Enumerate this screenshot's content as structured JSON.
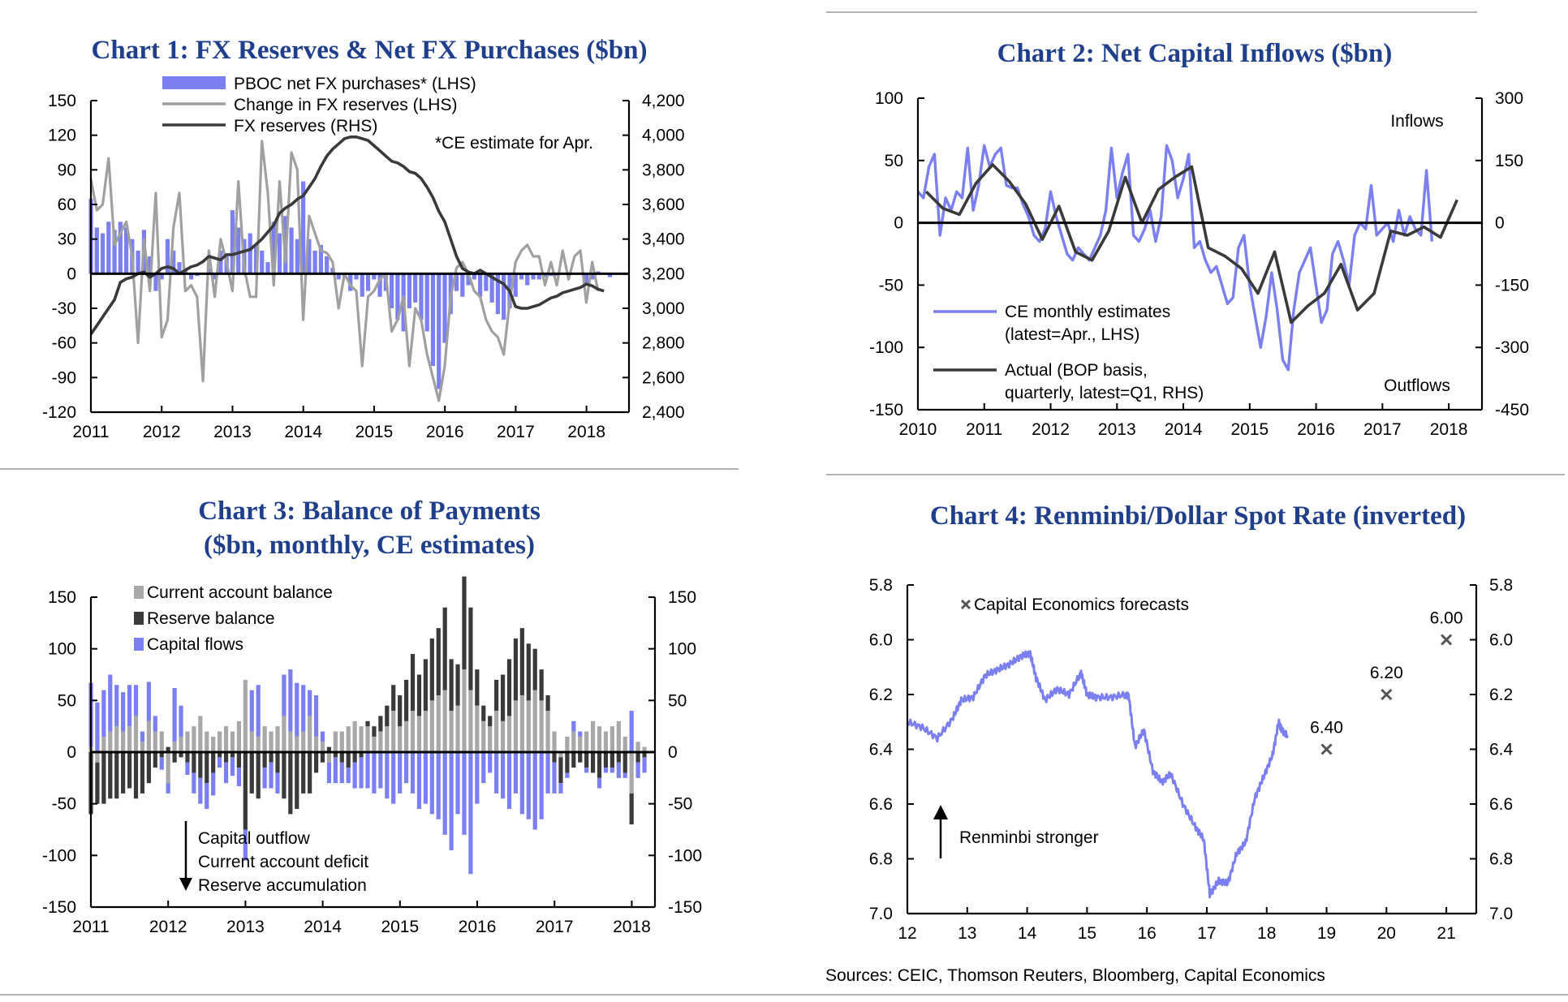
{
  "sources": "Sources: CEIC, Thomson Reuters, Bloomberg, Capital Economics",
  "colors": {
    "title": "#1f3e8c",
    "periwinkle": "#7b7ff2",
    "grey": "#a0a0a0",
    "dark": "#3a3a3a"
  },
  "chart_data": [
    {
      "id": "c1",
      "type": "bar+line",
      "title": "Chart 1: FX Reserves & Net FX Purchases ($bn)",
      "note": "*CE estimate for Apr.",
      "x_ticks": [
        "2011",
        "2012",
        "2013",
        "2014",
        "2015",
        "2016",
        "2017",
        "2018"
      ],
      "x_range": [
        2011,
        2018.6
      ],
      "y_left": {
        "ticks": [
          "150",
          "120",
          "90",
          "60",
          "30",
          "0",
          "-30",
          "-60",
          "-90",
          "-120"
        ],
        "range": [
          -120,
          150
        ]
      },
      "y_right": {
        "ticks": [
          "4,200",
          "4,000",
          "3,800",
          "3,600",
          "3,400",
          "3,200",
          "3,000",
          "2,800",
          "2,600",
          "2,400"
        ],
        "range": [
          2400,
          4200
        ]
      },
      "legend": [
        "PBOC net FX purchases* (LHS)",
        "Change in FX reserves (LHS)",
        "FX reserves (RHS)"
      ],
      "series": [
        {
          "name": "PBOC net FX purchases* (LHS)",
          "type": "bar",
          "axis": "left",
          "start": 2011.0,
          "step": 0.0833,
          "values": [
            65,
            40,
            35,
            45,
            38,
            45,
            40,
            30,
            20,
            38,
            15,
            -15,
            -5,
            30,
            20,
            10,
            5,
            -5,
            -2,
            0,
            5,
            -5,
            20,
            15,
            55,
            40,
            30,
            35,
            25,
            20,
            10,
            45,
            35,
            50,
            40,
            30,
            80,
            30,
            20,
            25,
            15,
            5,
            -5,
            -2,
            -15,
            -5,
            -20,
            -15,
            -5,
            -20,
            -15,
            -30,
            -40,
            -50,
            -30,
            -25,
            -40,
            -50,
            -80,
            -100,
            -60,
            -35,
            -15,
            -20,
            -10,
            -5,
            -20,
            -15,
            -25,
            -35,
            -40,
            -30,
            -20,
            -5,
            -10,
            -5,
            -5,
            -3,
            -2,
            -2,
            0,
            0,
            0,
            0,
            -10,
            -5,
            2,
            1,
            -3
          ]
        },
        {
          "name": "Change in FX reserves (LHS)",
          "type": "line",
          "axis": "left",
          "start": 2011.0,
          "step": 0.0833,
          "values": [
            82,
            55,
            60,
            100,
            25,
            35,
            45,
            15,
            -60,
            30,
            -15,
            70,
            -55,
            -40,
            40,
            70,
            -15,
            -10,
            -20,
            -93,
            20,
            -20,
            30,
            10,
            -15,
            80,
            5,
            -20,
            -20,
            115,
            70,
            -10,
            80,
            10,
            105,
            90,
            -40,
            50,
            35,
            20,
            18,
            10,
            -30,
            0,
            -10,
            -15,
            -80,
            -20,
            -15,
            -5,
            0,
            -50,
            -40,
            -20,
            -80,
            -30,
            -40,
            -70,
            -90,
            -110,
            -80,
            -20,
            5,
            10,
            0,
            -15,
            -20,
            -40,
            -50,
            -55,
            -70,
            -25,
            10,
            20,
            25,
            15,
            15,
            -10,
            10,
            -10,
            20,
            -5,
            15,
            20,
            -25,
            10,
            -15
          ]
        },
        {
          "name": "FX reserves (RHS)",
          "type": "line",
          "axis": "right",
          "start": 2011.0,
          "step": 0.0833,
          "values": [
            2850,
            2900,
            2950,
            3000,
            3050,
            3150,
            3170,
            3180,
            3200,
            3210,
            3180,
            3200,
            3230,
            3240,
            3230,
            3200,
            3220,
            3240,
            3250,
            3270,
            3300,
            3290,
            3280,
            3310,
            3310,
            3320,
            3330,
            3340,
            3370,
            3400,
            3440,
            3480,
            3550,
            3580,
            3600,
            3630,
            3650,
            3700,
            3750,
            3820,
            3880,
            3920,
            3950,
            3980,
            3990,
            3990,
            3980,
            3970,
            3940,
            3910,
            3880,
            3850,
            3840,
            3820,
            3790,
            3780,
            3750,
            3700,
            3640,
            3560,
            3500,
            3400,
            3300,
            3230,
            3210,
            3200,
            3220,
            3200,
            3180,
            3160,
            3140,
            3100,
            3010,
            3000,
            3000,
            3010,
            3020,
            3040,
            3060,
            3070,
            3090,
            3100,
            3110,
            3120,
            3140,
            3130,
            3110,
            3100
          ]
        }
      ]
    },
    {
      "id": "c2",
      "type": "line",
      "title": "Chart 2: Net Capital Inflows ($bn)",
      "x_ticks": [
        "2010",
        "2011",
        "2012",
        "2013",
        "2014",
        "2015",
        "2016",
        "2017",
        "2018"
      ],
      "x_range": [
        2010,
        2018.5
      ],
      "y_left": {
        "ticks": [
          "100",
          "50",
          "0",
          "-50",
          "-100",
          "-150"
        ],
        "range": [
          -150,
          100
        ]
      },
      "y_right": {
        "ticks": [
          "300",
          "150",
          "0",
          "-150",
          "-300",
          "-450"
        ],
        "range": [
          -450,
          300
        ]
      },
      "annotations": [
        "Inflows",
        "Outflows"
      ],
      "legend": [
        "CE monthly estimates",
        "(latest=Apr., LHS)",
        "Actual (BOP basis,",
        "quarterly, latest=Q1, RHS)"
      ],
      "series": [
        {
          "name": "CE monthly estimates (latest=Apr., LHS)",
          "type": "line",
          "axis": "left",
          "start": 2010.0,
          "step": 0.0833,
          "values": [
            25,
            20,
            45,
            55,
            -10,
            20,
            10,
            25,
            20,
            60,
            10,
            30,
            62,
            45,
            55,
            60,
            30,
            28,
            28,
            15,
            5,
            -10,
            -15,
            -5,
            25,
            5,
            -10,
            -25,
            -30,
            -20,
            -25,
            -30,
            -20,
            -10,
            10,
            60,
            20,
            40,
            55,
            -10,
            -15,
            -5,
            10,
            -15,
            5,
            62,
            50,
            20,
            35,
            55,
            -20,
            -15,
            -30,
            -40,
            -35,
            -50,
            -65,
            -60,
            -20,
            -10,
            -50,
            -75,
            -100,
            -75,
            -40,
            -70,
            -110,
            -118,
            -70,
            -40,
            -30,
            -20,
            -50,
            -80,
            -70,
            -25,
            -15,
            -30,
            -50,
            -10,
            0,
            -5,
            30,
            -10,
            -5,
            0,
            -15,
            10,
            -10,
            5,
            -5,
            -10,
            42,
            -15
          ]
        },
        {
          "name": "Actual (BOP basis, quarterly, latest=Q1, RHS)",
          "type": "line",
          "axis": "right",
          "x": [
            2010.125,
            2010.375,
            2010.625,
            2010.875,
            2011.125,
            2011.375,
            2011.625,
            2011.875,
            2012.125,
            2012.375,
            2012.625,
            2012.875,
            2013.125,
            2013.375,
            2013.625,
            2013.875,
            2014.125,
            2014.375,
            2014.625,
            2014.875,
            2015.125,
            2015.375,
            2015.625,
            2015.875,
            2016.125,
            2016.375,
            2016.625,
            2016.875,
            2017.125,
            2017.375,
            2017.625,
            2017.875,
            2018.125
          ],
          "values": [
            75,
            35,
            20,
            95,
            140,
            100,
            45,
            -40,
            40,
            -70,
            -90,
            -20,
            110,
            0,
            80,
            110,
            135,
            -60,
            -80,
            -110,
            -170,
            -70,
            -240,
            -200,
            -170,
            -100,
            -210,
            -170,
            -20,
            -30,
            -10,
            -35,
            55
          ]
        }
      ]
    },
    {
      "id": "c3",
      "type": "bar",
      "title_lines": [
        "Chart 3: Balance of Payments",
        "($bn, monthly, CE estimates)"
      ],
      "x_ticks": [
        "2011",
        "2012",
        "2013",
        "2014",
        "2015",
        "2016",
        "2017",
        "2018"
      ],
      "x_range": [
        2011,
        2018.3
      ],
      "y_left": {
        "ticks": [
          "150",
          "100",
          "50",
          "0",
          "-50",
          "-100",
          "-150"
        ],
        "range": [
          -150,
          150
        ]
      },
      "y_right": {
        "ticks": [
          "150",
          "100",
          "50",
          "0",
          "-50",
          "-100",
          "-150"
        ],
        "range": [
          -150,
          150
        ]
      },
      "legend": [
        "Current account balance",
        "Reserve balance",
        "Capital flows"
      ],
      "annotations": [
        "Capital outflow",
        "Current account deficit",
        "Reserve accumulation"
      ],
      "start": 2011.0,
      "step": 0.0833,
      "series": [
        {
          "name": "Current account balance",
          "values": [
            5,
            -10,
            15,
            20,
            25,
            20,
            25,
            35,
            10,
            30,
            20,
            20,
            -30,
            10,
            15,
            20,
            25,
            35,
            20,
            15,
            20,
            25,
            20,
            30,
            70,
            20,
            15,
            25,
            20,
            25,
            35,
            20,
            15,
            20,
            35,
            15,
            10,
            -10,
            20,
            20,
            25,
            30,
            25,
            25,
            15,
            20,
            25,
            40,
            25,
            30,
            40,
            35,
            40,
            50,
            55,
            60,
            40,
            45,
            80,
            60,
            45,
            30,
            25,
            40,
            30,
            35,
            50,
            55,
            50,
            60,
            50,
            40,
            20,
            -5,
            15,
            20,
            15,
            20,
            30,
            25,
            20,
            25,
            30,
            15,
            -40,
            10,
            5
          ]
        },
        {
          "name": "Reserve balance",
          "values": [
            -60,
            -40,
            -50,
            -45,
            -45,
            -40,
            -35,
            -45,
            -40,
            -30,
            -15,
            -5,
            5,
            -10,
            -5,
            -10,
            -20,
            -25,
            -30,
            -20,
            -5,
            -10,
            -5,
            -15,
            -75,
            -40,
            -45,
            -15,
            -10,
            -20,
            -45,
            -60,
            -55,
            -40,
            -40,
            -20,
            -10,
            5,
            -5,
            -10,
            -15,
            -10,
            -5,
            5,
            10,
            15,
            20,
            25,
            30,
            40,
            55,
            40,
            50,
            60,
            65,
            80,
            50,
            40,
            90,
            80,
            35,
            15,
            10,
            30,
            45,
            55,
            60,
            65,
            55,
            40,
            30,
            15,
            -10,
            -25,
            -20,
            -15,
            -10,
            -15,
            -20,
            -25,
            -15,
            -15,
            -10,
            -20,
            -30,
            -10,
            -5
          ]
        },
        {
          "name": "Capital flows",
          "values": [
            62,
            48,
            45,
            55,
            40,
            38,
            40,
            30,
            10,
            38,
            15,
            -12,
            -10,
            52,
            30,
            -12,
            -20,
            -25,
            -25,
            -22,
            -10,
            -20,
            -18,
            -18,
            -30,
            40,
            50,
            -20,
            -25,
            -20,
            40,
            60,
            52,
            45,
            25,
            40,
            10,
            -20,
            -25,
            -20,
            -15,
            -25,
            -30,
            -35,
            -40,
            -35,
            -45,
            -50,
            -40,
            -30,
            -40,
            -55,
            -50,
            -60,
            -65,
            -80,
            -95,
            -60,
            -80,
            -118,
            -50,
            -30,
            -20,
            -40,
            -45,
            -55,
            -40,
            -60,
            -65,
            -75,
            -65,
            -40,
            -30,
            -10,
            -5,
            10,
            5,
            -5,
            0,
            -10,
            -5,
            -5,
            -15,
            -5,
            40,
            -15,
            -15
          ]
        }
      ]
    },
    {
      "id": "c4",
      "type": "line",
      "title": "Chart 4: Renminbi/Dollar Spot Rate (inverted)",
      "x_ticks": [
        "12",
        "13",
        "14",
        "15",
        "16",
        "17",
        "18",
        "19",
        "20",
        "21"
      ],
      "x_range": [
        12,
        21.5
      ],
      "y_left": {
        "ticks": [
          "5.8",
          "6.0",
          "6.2",
          "6.4",
          "6.6",
          "6.8",
          "7.0"
        ],
        "range": [
          5.8,
          7.0
        ]
      },
      "y_right": {
        "ticks": [
          "5.8",
          "6.0",
          "6.2",
          "6.4",
          "6.6",
          "6.8",
          "7.0"
        ],
        "range": [
          5.8,
          7.0
        ]
      },
      "legend": [
        "Capital Economics forecasts"
      ],
      "annotation": "Renminbi stronger",
      "series": [
        {
          "name": "Renminbi/Dollar spot rate",
          "x": [
            12.0,
            12.25,
            12.5,
            12.75,
            12.9,
            13.1,
            13.3,
            13.5,
            13.7,
            13.9,
            14.05,
            14.15,
            14.3,
            14.5,
            14.7,
            14.9,
            15.0,
            15.15,
            15.4,
            15.65,
            15.7,
            15.8,
            15.95,
            16.1,
            16.25,
            16.4,
            16.6,
            16.8,
            16.95,
            17.05,
            17.2,
            17.35,
            17.5,
            17.65,
            17.8,
            17.95,
            18.1,
            18.2,
            18.25,
            18.35
          ],
          "values": [
            6.3,
            6.32,
            6.36,
            6.29,
            6.22,
            6.21,
            6.13,
            6.11,
            6.09,
            6.06,
            6.05,
            6.14,
            6.22,
            6.18,
            6.2,
            6.12,
            6.2,
            6.21,
            6.21,
            6.2,
            6.21,
            6.39,
            6.33,
            6.48,
            6.52,
            6.49,
            6.6,
            6.68,
            6.73,
            6.93,
            6.88,
            6.89,
            6.78,
            6.74,
            6.58,
            6.5,
            6.42,
            6.3,
            6.33,
            6.35
          ]
        }
      ],
      "forecasts": {
        "x": [
          19,
          20,
          21
        ],
        "values": [
          6.4,
          6.2,
          6.0
        ],
        "labels": [
          "6.40",
          "6.20",
          "6.00"
        ]
      }
    }
  ]
}
